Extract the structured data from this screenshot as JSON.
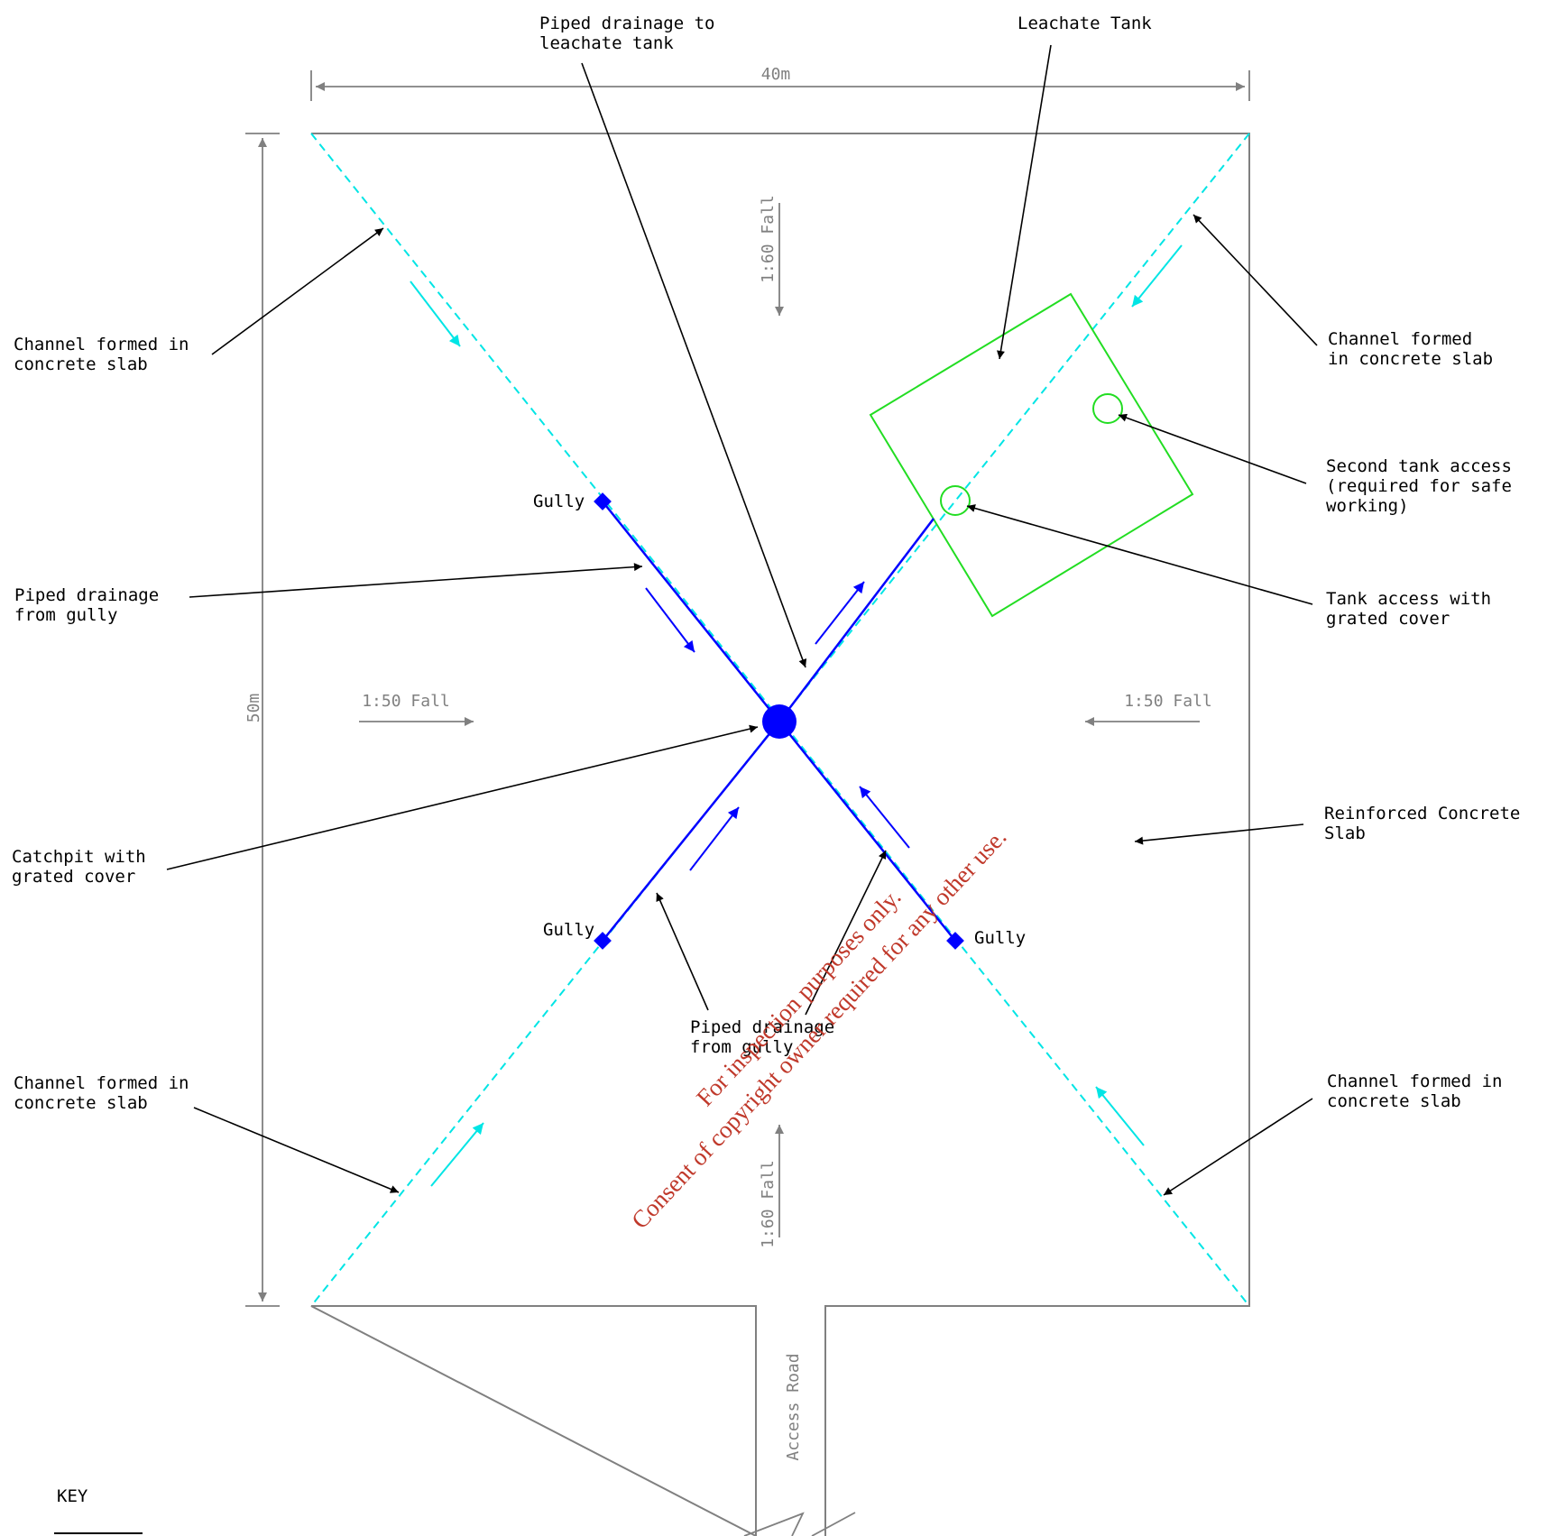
{
  "dimensions": {
    "width_label": "40m",
    "height_label": "50m"
  },
  "falls": {
    "top": "1:60 Fall",
    "bottom": "1:60 Fall",
    "left": "1:50 Fall",
    "right": "1:50 Fall"
  },
  "labels": {
    "piped_to_tank": [
      "Piped drainage to",
      "leachate tank"
    ],
    "leachate_tank": [
      "Leachate Tank"
    ],
    "channel_top_left": [
      "Channel formed in",
      "concrete slab"
    ],
    "channel_top_right": [
      "Channel formed",
      "in concrete slab"
    ],
    "second_access": [
      "Second tank access",
      "(required for safe",
      "working)"
    ],
    "tank_access": [
      "Tank access with",
      "grated cover"
    ],
    "piped_from_gully_left": [
      "Piped drainage",
      "from gully"
    ],
    "catchpit": [
      "Catchpit with",
      "grated cover"
    ],
    "reinforced_slab": [
      "Reinforced Concrete",
      "Slab"
    ],
    "piped_from_gully_bottom": [
      "Piped drainage",
      "from gully"
    ],
    "channel_bottom_left": [
      "Channel formed in",
      "concrete slab"
    ],
    "channel_bottom_right": [
      "Channel formed in",
      "concrete slab"
    ],
    "gully_top": "Gully",
    "gully_left": "Gully",
    "gully_right": "Gully",
    "access_road": "Access Road",
    "key": "KEY"
  },
  "watermark": {
    "line1": "For inspection purposes only.",
    "line2": "Consent of copyright owner required for any other use."
  },
  "colors": {
    "slab_outline": "#808080",
    "channel": "#00e5e5",
    "pipe": "#0000ff",
    "tank": "#22dd22",
    "leader": "#000000",
    "watermark": "#c0392b"
  }
}
